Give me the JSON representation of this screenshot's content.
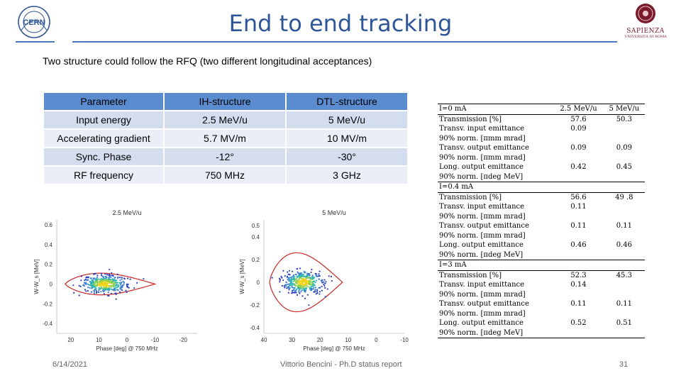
{
  "header": {
    "title": "End to end tracking",
    "cern_logo_text": "CERN",
    "sapienza_text": "SAPIENZA",
    "sapienza_sub": "UNIVERSITÀ DI ROMA"
  },
  "subtitle": "Two structure could follow the RFQ (two different longitudinal acceptances)",
  "param_table": {
    "headers": [
      "Parameter",
      "IH-structure",
      "DTL-structure"
    ],
    "rows": [
      [
        "Input energy",
        "2.5 MeV/u",
        "5 MeV/u"
      ],
      [
        "Accelerating gradient",
        "5.7 MV/m",
        "10 MV/m"
      ],
      [
        "Sync. Phase",
        "-12°",
        "-30°"
      ],
      [
        "RF frequency",
        "750 MHz",
        "3 GHz"
      ]
    ]
  },
  "acc_table": {
    "header": [
      "I=0 mA",
      "2.5 MeV/u",
      "5 MeV/u"
    ],
    "sections": [
      {
        "current": "I=0 mA",
        "rows": [
          [
            "Transmission [%]",
            "57.6",
            "50.3"
          ],
          [
            "Transv. input emittance",
            "0.09",
            ""
          ],
          [
            "90% norm. [πmm mrad]",
            "",
            ""
          ],
          [
            "Transv. output emittance",
            "0.09",
            "0.09"
          ],
          [
            "90% norm. [πmm mrad]",
            "",
            ""
          ],
          [
            "Long. output emittance",
            "0.42",
            "0.45"
          ],
          [
            "90% norm. [πdeg MeV]",
            "",
            ""
          ]
        ]
      },
      {
        "current": "I=0.4 mA",
        "rows": [
          [
            "Transmission [%]",
            "56.6",
            "49 .8"
          ],
          [
            "Transv. input emittance",
            "0.11",
            ""
          ],
          [
            "90% norm. [πmm mrad]",
            "",
            ""
          ],
          [
            "Transv. output emittance",
            "0.11",
            "0.11"
          ],
          [
            "90% norm. [πmm mrad]",
            "",
            ""
          ],
          [
            "Long. output emittance",
            "0.46",
            "0.46"
          ],
          [
            "90% norm. [πdeg MeV]",
            "",
            ""
          ]
        ]
      },
      {
        "current": "I=3 mA",
        "rows": [
          [
            "Transmission [%]",
            "52.3",
            "45.3"
          ],
          [
            "Transv. input emittance",
            "0.14",
            ""
          ],
          [
            "90% norm. [πmm mrad]",
            "",
            ""
          ],
          [
            "Transv. output emittance",
            "0.11",
            "0.11"
          ],
          [
            "90% norm. [πmm mrad]",
            "",
            ""
          ],
          [
            "Long. output emittance",
            "0.52",
            "0.51"
          ],
          [
            "90% norm. [πdeg MeV]",
            "",
            ""
          ]
        ]
      }
    ]
  },
  "chart_data": [
    {
      "type": "scatter",
      "title": "2.5 MeV/u",
      "xlabel": "Phase [deg] @ 750 MHz",
      "ylabel": "W-W_s [MeV]",
      "x_ticks": [
        "20",
        "10",
        "0",
        "-10",
        "-20"
      ],
      "y_ticks": [
        "0.6",
        "0.4",
        "0.2",
        "0",
        "-0.2",
        "-0.4"
      ],
      "xlim": [
        25,
        -25
      ],
      "ylim": [
        -0.5,
        0.65
      ],
      "separatrix_color": "#cc2a2a",
      "bunch_center": [
        8,
        0.0
      ],
      "bunch_spread": [
        4,
        0.045
      ]
    },
    {
      "type": "scatter",
      "title": "5 MeV/u",
      "xlabel": "Phase [deg] @ 750 MHz",
      "ylabel": "W-W_s [MeV]",
      "x_ticks": [
        "40",
        "30",
        "20",
        "10",
        "0",
        "-10"
      ],
      "y_ticks": [
        "0.5",
        "0.4",
        "0.2",
        "0",
        "-0.2",
        "-0.4"
      ],
      "xlim": [
        40,
        -10
      ],
      "ylim": [
        -0.45,
        0.55
      ],
      "separatrix_color": "#cc2a2a",
      "bunch_center": [
        26,
        0.0
      ],
      "bunch_spread": [
        3.5,
        0.05
      ]
    }
  ],
  "footer": {
    "date": "6/14/2021",
    "author": "Vittorio Bencini - Ph.D status report",
    "page": "31"
  }
}
